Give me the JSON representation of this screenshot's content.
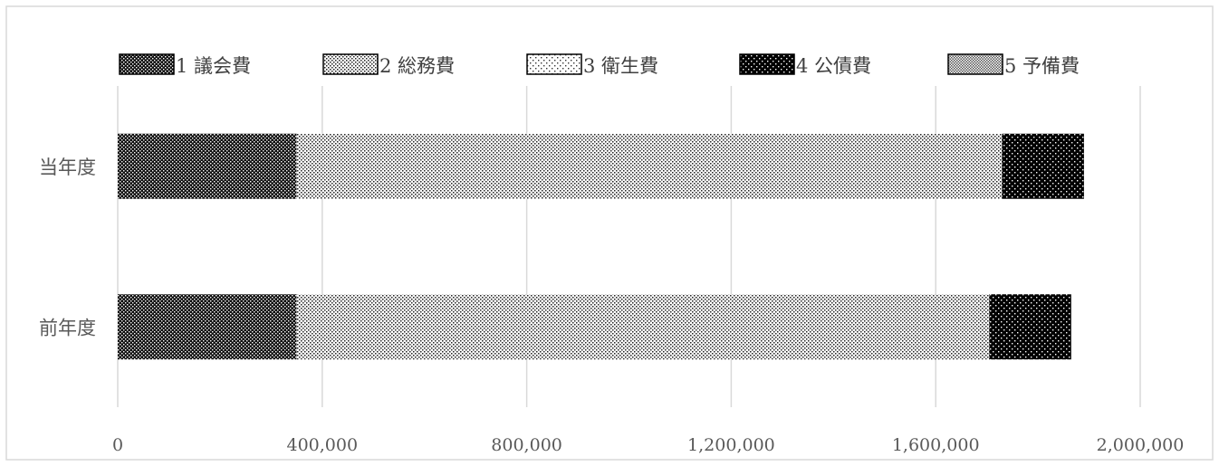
{
  "chart_data": {
    "type": "bar",
    "orientation": "horizontal",
    "stacked": true,
    "categories": [
      "当年度",
      "前年度"
    ],
    "series": [
      {
        "name": "1 議会費",
        "values": [
          350000,
          350000
        ],
        "pattern": "checker-dense"
      },
      {
        "name": "2 総務費",
        "values": [
          1380000,
          1355000
        ],
        "pattern": "dots-fine"
      },
      {
        "name": "3 衛生費",
        "values": [
          0,
          0
        ],
        "pattern": "dots-sparse"
      },
      {
        "name": "4 公債費",
        "values": [
          160000,
          160000
        ],
        "pattern": "dots-black-bg"
      },
      {
        "name": "5 予備費",
        "values": [
          0,
          0
        ],
        "pattern": "checker-gray"
      }
    ],
    "x_ticks": [
      "0",
      "400,000",
      "800,000",
      "1,200,000",
      "1,600,000",
      "2,000,000"
    ],
    "xlim": [
      0,
      2000000
    ],
    "grid": true,
    "legend_position": "top",
    "title": "",
    "xlabel": "",
    "ylabel": ""
  }
}
